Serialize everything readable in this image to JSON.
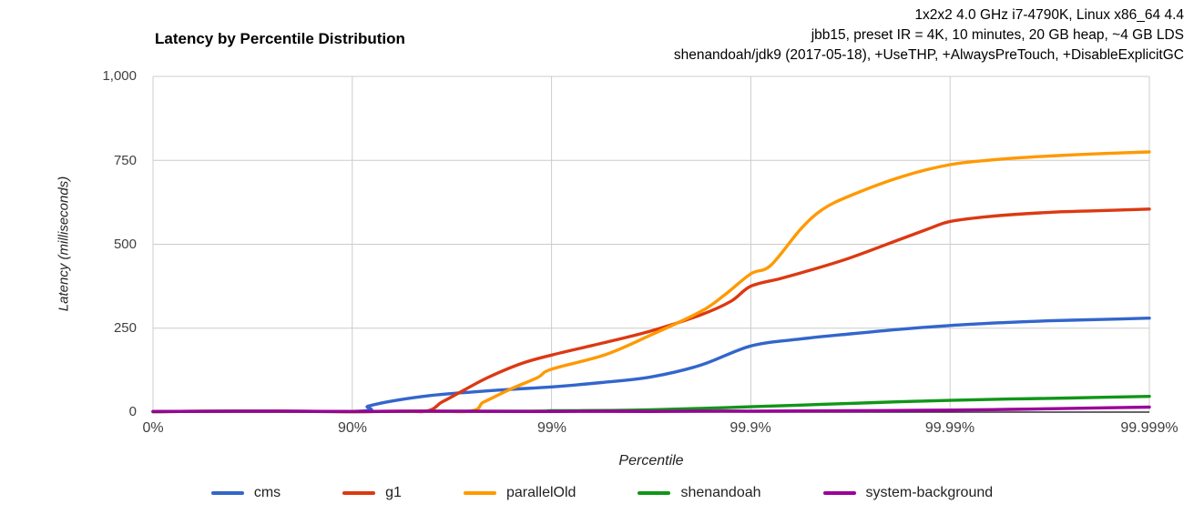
{
  "header": {
    "line1": "1x2x2 4.0 GHz i7-4790K, Linux x86_64 4.4",
    "line2": "jbb15, preset IR = 4K, 10 minutes, 20 GB heap, ~4 GB LDS",
    "line3": "shenandoah/jdk9 (2017-05-18), +UseTHP, +AlwaysPreTouch, +DisableExplicitGC"
  },
  "chart_data": {
    "type": "line",
    "title": "Latency by Percentile Distribution",
    "xlabel": "Percentile",
    "ylabel": "Latency (milliseconds)",
    "x_scale": "log-percentile (x in decades: 0=0%, 1=90%, 2=99%, 3=99.9%, 4=99.99%, 5=99.999%)",
    "x_tick_decades": [
      0,
      1,
      2,
      3,
      4,
      5
    ],
    "x_tick_labels": [
      "0%",
      "90%",
      "99%",
      "99.9%",
      "99.99%",
      "99.999%"
    ],
    "y_ticks": [
      {
        "value": 0,
        "label": "0"
      },
      {
        "value": 250,
        "label": "250"
      },
      {
        "value": 500,
        "label": "500"
      },
      {
        "value": 750,
        "label": "750"
      },
      {
        "value": 1000,
        "label": "1,000"
      }
    ],
    "ylim": [
      0,
      1000
    ],
    "grid": true,
    "legend_position": "bottom",
    "colors": {
      "gridline": "#cccccc",
      "axis_line": "#333333",
      "tick_label": "#404040",
      "axis_title": "#222222",
      "title": "#000000"
    },
    "series": [
      {
        "name": "cms",
        "color": "#3366cc",
        "points": [
          [
            0,
            2
          ],
          [
            1,
            2
          ],
          [
            1.08,
            18
          ],
          [
            1.2,
            33
          ],
          [
            1.4,
            50
          ],
          [
            1.6,
            60
          ],
          [
            1.8,
            68
          ],
          [
            2,
            75
          ],
          [
            2.25,
            88
          ],
          [
            2.5,
            105
          ],
          [
            2.75,
            140
          ],
          [
            3,
            197
          ],
          [
            3.25,
            218
          ],
          [
            3.5,
            233
          ],
          [
            3.75,
            247
          ],
          [
            4,
            258
          ],
          [
            4.25,
            266
          ],
          [
            4.5,
            272
          ],
          [
            4.75,
            276
          ],
          [
            5,
            280
          ]
        ]
      },
      {
        "name": "g1",
        "color": "#dc3912",
        "points": [
          [
            0,
            1
          ],
          [
            1,
            1
          ],
          [
            1.35,
            1
          ],
          [
            1.45,
            30
          ],
          [
            1.55,
            62
          ],
          [
            1.68,
            103
          ],
          [
            1.85,
            145
          ],
          [
            2,
            170
          ],
          [
            2.25,
            205
          ],
          [
            2.5,
            242
          ],
          [
            2.75,
            290
          ],
          [
            2.9,
            330
          ],
          [
            3,
            375
          ],
          [
            3.15,
            398
          ],
          [
            3.3,
            423
          ],
          [
            3.5,
            460
          ],
          [
            3.75,
            515
          ],
          [
            3.9,
            548
          ],
          [
            4,
            568
          ],
          [
            4.2,
            583
          ],
          [
            4.5,
            595
          ],
          [
            4.75,
            600
          ],
          [
            5,
            605
          ]
        ]
      },
      {
        "name": "parallelOld",
        "color": "#ff9900",
        "points": [
          [
            0,
            1
          ],
          [
            1,
            1
          ],
          [
            1.56,
            1
          ],
          [
            1.66,
            30
          ],
          [
            1.8,
            70
          ],
          [
            1.93,
            103
          ],
          [
            2,
            128
          ],
          [
            2.27,
            171
          ],
          [
            2.5,
            230
          ],
          [
            2.75,
            300
          ],
          [
            2.87,
            350
          ],
          [
            3,
            412
          ],
          [
            3.1,
            437
          ],
          [
            3.25,
            545
          ],
          [
            3.36,
            604
          ],
          [
            3.5,
            645
          ],
          [
            3.75,
            700
          ],
          [
            4,
            737
          ],
          [
            4.25,
            753
          ],
          [
            4.5,
            763
          ],
          [
            4.75,
            770
          ],
          [
            5,
            775
          ]
        ]
      },
      {
        "name": "shenandoah",
        "color": "#109618",
        "points": [
          [
            0,
            1
          ],
          [
            1,
            1
          ],
          [
            1.9,
            3
          ],
          [
            2,
            4
          ],
          [
            2.3,
            5
          ],
          [
            2.5,
            7
          ],
          [
            2.75,
            11
          ],
          [
            3,
            16
          ],
          [
            3.25,
            21
          ],
          [
            3.5,
            26
          ],
          [
            3.75,
            31
          ],
          [
            4,
            35
          ],
          [
            4.3,
            39
          ],
          [
            4.6,
            42
          ],
          [
            5,
            47
          ]
        ]
      },
      {
        "name": "system-background",
        "color": "#990099",
        "points": [
          [
            0,
            2
          ],
          [
            1,
            2
          ],
          [
            2,
            2
          ],
          [
            2.5,
            2
          ],
          [
            3,
            3
          ],
          [
            3.5,
            4
          ],
          [
            4,
            6
          ],
          [
            4.3,
            8
          ],
          [
            4.6,
            11
          ],
          [
            4.8,
            13
          ],
          [
            5,
            15
          ]
        ]
      }
    ]
  }
}
